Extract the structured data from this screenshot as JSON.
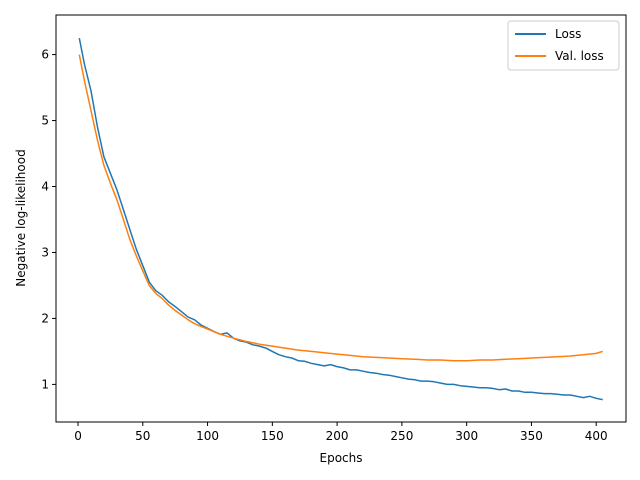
{
  "chart_data": {
    "type": "line",
    "title": "",
    "xlabel": "Epochs",
    "ylabel": "Negative log-likelihood",
    "xlim": [
      -17,
      423
    ],
    "ylim": [
      0.43,
      6.6
    ],
    "xticks": [
      0,
      50,
      100,
      150,
      200,
      250,
      300,
      350,
      400
    ],
    "yticks": [
      1,
      2,
      3,
      4,
      5,
      6
    ],
    "grid": false,
    "legend_position": "top-right",
    "series": [
      {
        "name": "Loss",
        "color": "#1f77b4",
        "x": [
          1,
          5,
          10,
          15,
          20,
          25,
          30,
          35,
          40,
          45,
          50,
          55,
          60,
          65,
          70,
          75,
          80,
          85,
          90,
          95,
          100,
          105,
          110,
          115,
          120,
          125,
          130,
          135,
          140,
          145,
          150,
          155,
          160,
          165,
          170,
          175,
          180,
          185,
          190,
          195,
          200,
          205,
          210,
          215,
          220,
          225,
          230,
          235,
          240,
          245,
          250,
          255,
          260,
          265,
          270,
          275,
          280,
          285,
          290,
          295,
          300,
          305,
          310,
          315,
          320,
          325,
          330,
          335,
          340,
          345,
          350,
          355,
          360,
          365,
          370,
          375,
          380,
          385,
          390,
          395,
          400,
          405
        ],
        "y": [
          6.25,
          5.85,
          5.45,
          4.9,
          4.45,
          4.2,
          3.95,
          3.65,
          3.35,
          3.05,
          2.8,
          2.55,
          2.42,
          2.35,
          2.25,
          2.18,
          2.1,
          2.02,
          1.98,
          1.9,
          1.85,
          1.8,
          1.76,
          1.78,
          1.7,
          1.66,
          1.64,
          1.6,
          1.58,
          1.55,
          1.5,
          1.45,
          1.42,
          1.4,
          1.36,
          1.35,
          1.32,
          1.3,
          1.28,
          1.3,
          1.27,
          1.25,
          1.22,
          1.22,
          1.2,
          1.18,
          1.17,
          1.15,
          1.14,
          1.12,
          1.1,
          1.08,
          1.07,
          1.05,
          1.05,
          1.04,
          1.02,
          1.0,
          1.0,
          0.98,
          0.97,
          0.96,
          0.95,
          0.95,
          0.94,
          0.92,
          0.93,
          0.9,
          0.9,
          0.88,
          0.88,
          0.87,
          0.86,
          0.86,
          0.85,
          0.84,
          0.84,
          0.82,
          0.8,
          0.82,
          0.79,
          0.77
        ]
      },
      {
        "name": "Val. loss",
        "color": "#ff7f0e",
        "x": [
          1,
          5,
          10,
          15,
          20,
          25,
          30,
          35,
          40,
          45,
          50,
          55,
          60,
          65,
          70,
          75,
          80,
          85,
          90,
          95,
          100,
          110,
          120,
          130,
          140,
          150,
          160,
          170,
          180,
          190,
          200,
          210,
          220,
          230,
          240,
          250,
          260,
          270,
          280,
          290,
          300,
          310,
          320,
          330,
          340,
          350,
          360,
          370,
          380,
          390,
          400,
          405
        ],
        "y": [
          6.0,
          5.6,
          5.15,
          4.7,
          4.32,
          4.05,
          3.8,
          3.5,
          3.2,
          2.95,
          2.72,
          2.5,
          2.38,
          2.3,
          2.2,
          2.12,
          2.05,
          1.98,
          1.92,
          1.88,
          1.84,
          1.76,
          1.7,
          1.65,
          1.61,
          1.58,
          1.55,
          1.52,
          1.5,
          1.48,
          1.46,
          1.44,
          1.42,
          1.41,
          1.4,
          1.39,
          1.38,
          1.37,
          1.37,
          1.36,
          1.36,
          1.37,
          1.37,
          1.38,
          1.39,
          1.4,
          1.41,
          1.42,
          1.43,
          1.45,
          1.47,
          1.5
        ]
      }
    ]
  }
}
